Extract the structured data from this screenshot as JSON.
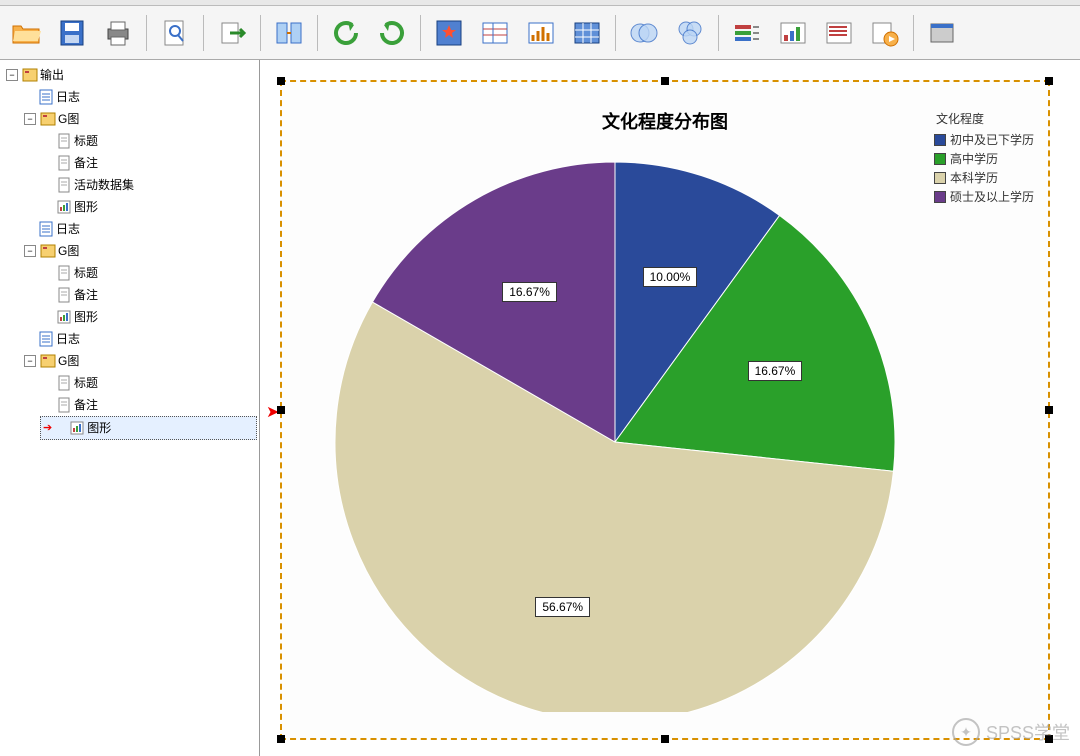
{
  "toolbar": {
    "buttons": [
      {
        "id": "open",
        "name": "open-icon"
      },
      {
        "id": "save",
        "name": "save-icon"
      },
      {
        "id": "print",
        "name": "print-icon"
      },
      {
        "id": "preview",
        "name": "preview-icon"
      },
      {
        "id": "export",
        "name": "export-icon"
      },
      {
        "id": "togglepanes",
        "name": "panes-icon"
      },
      {
        "id": "undo",
        "name": "undo-icon"
      },
      {
        "id": "redo",
        "name": "redo-icon"
      },
      {
        "id": "favorite",
        "name": "star-icon"
      },
      {
        "id": "reporttbl",
        "name": "table1-icon"
      },
      {
        "id": "reportchart",
        "name": "table2-icon"
      },
      {
        "id": "varlist",
        "name": "table3-icon"
      },
      {
        "id": "venn1",
        "name": "venn1-icon"
      },
      {
        "id": "venn2",
        "name": "venn2-icon"
      },
      {
        "id": "layers",
        "name": "layers-icon"
      },
      {
        "id": "chartopts",
        "name": "chartopts-icon"
      },
      {
        "id": "chartwiz",
        "name": "chartwiz-icon"
      },
      {
        "id": "play",
        "name": "play-icon"
      },
      {
        "id": "dialog",
        "name": "dialog-icon"
      }
    ]
  },
  "tree": {
    "root": "输出",
    "groups": [
      {
        "log": "日志",
        "g": "G图",
        "children": [
          "标题",
          "备注",
          "活动数据集",
          "图形"
        ],
        "extra_log": true
      },
      {
        "log": "日志",
        "g": "G图",
        "children": [
          "标题",
          "备注",
          "图形"
        ],
        "extra_log": true
      },
      {
        "log": "日志",
        "g": "G图",
        "children": [
          "标题",
          "备注",
          "图形"
        ],
        "extra_log": false,
        "selected_child": 2
      }
    ]
  },
  "chart": {
    "title": "文化程度分布图",
    "legend_title": "文化程度",
    "type": "pie",
    "background": "#fdfdfd",
    "border_color": "#d89000",
    "slices": [
      {
        "label": "初中及已下学历",
        "value": 10.0,
        "pct": "10.00%",
        "color": "#2a4a9a"
      },
      {
        "label": "高中学历",
        "value": 16.67,
        "pct": "16.67%",
        "color": "#2aa02a"
      },
      {
        "label": "本科学历",
        "value": 56.67,
        "pct": "56.67%",
        "color": "#dad2ab"
      },
      {
        "label": "硕士及以上学历",
        "value": 16.67,
        "pct": "16.67%",
        "color": "#6a3c8a"
      }
    ],
    "pie_radius": 280,
    "title_fontsize": 18,
    "label_fontsize": 12,
    "label_bg": "#ffffff",
    "label_border": "#333333"
  },
  "watermark": "SPSS学堂"
}
